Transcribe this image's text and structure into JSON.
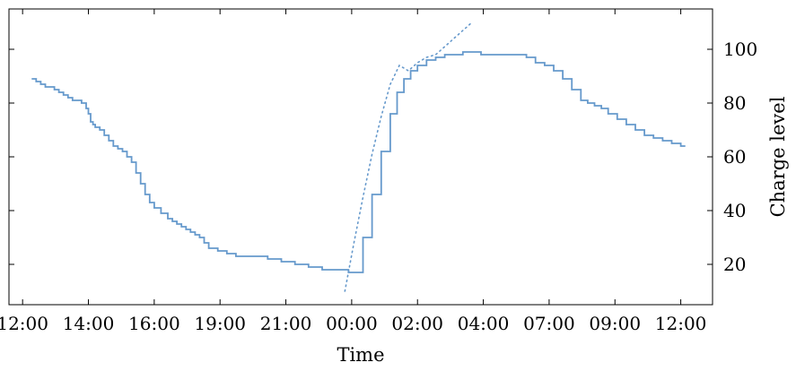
{
  "chart_data": {
    "type": "line",
    "title": "",
    "xlabel": "Time",
    "ylabel": "Charge level",
    "y_axis_side": "right",
    "grid": false,
    "legend": "none",
    "xlim": [
      0,
      15.5
    ],
    "ylim": [
      5,
      115
    ],
    "x_tick_values": [
      0.3,
      1.75,
      3.2,
      4.65,
      6.1,
      7.55,
      9.0,
      10.45,
      11.9,
      13.35,
      14.8
    ],
    "x_tick_labels": [
      "12:00",
      "14:00",
      "16:00",
      "19:00",
      "21:00",
      "00:00",
      "02:00",
      "04:00",
      "07:00",
      "09:00",
      "12:00"
    ],
    "y_ticks": [
      20,
      40,
      60,
      80,
      100
    ],
    "series": [
      {
        "style": "solid-step",
        "color": "#6699cc",
        "x": [
          0.5,
          0.6,
          0.7,
          0.8,
          0.9,
          1.0,
          1.1,
          1.2,
          1.3,
          1.4,
          1.5,
          1.6,
          1.7,
          1.75,
          1.8,
          1.85,
          1.9,
          2.0,
          2.1,
          2.2,
          2.3,
          2.4,
          2.5,
          2.6,
          2.7,
          2.8,
          2.9,
          3.0,
          3.1,
          3.2,
          3.35,
          3.5,
          3.6,
          3.7,
          3.8,
          3.9,
          4.0,
          4.1,
          4.2,
          4.3,
          4.4,
          4.5,
          4.6,
          4.7,
          4.8,
          5.0,
          5.2,
          5.4,
          5.7,
          6.0,
          6.3,
          6.6,
          6.9,
          7.2,
          7.48,
          7.6,
          7.8,
          8.0,
          8.2,
          8.4,
          8.55,
          8.7,
          8.85,
          9.0,
          9.2,
          9.4,
          9.6,
          9.8,
          10.0,
          10.2,
          10.4,
          10.6,
          10.8,
          11.0,
          11.2,
          11.4,
          11.6,
          11.8,
          12.0,
          12.2,
          12.4,
          12.6,
          12.75,
          12.9,
          13.05,
          13.2,
          13.4,
          13.6,
          13.8,
          14.0,
          14.2,
          14.4,
          14.6,
          14.8,
          14.9
        ],
        "y": [
          89,
          88,
          87,
          86,
          86,
          85,
          84,
          83,
          82,
          81,
          81,
          80,
          78,
          76,
          73,
          72,
          71,
          70,
          68,
          66,
          64,
          63,
          62,
          60,
          58,
          54,
          50,
          46,
          43,
          41,
          39,
          37,
          36,
          35,
          34,
          33,
          32,
          31,
          30,
          28,
          26,
          26,
          25,
          25,
          24,
          23,
          23,
          23,
          22,
          21,
          20,
          19,
          18,
          18,
          17,
          17,
          30,
          46,
          62,
          76,
          84,
          89,
          92,
          94,
          96,
          97,
          98,
          98,
          99,
          99,
          98,
          98,
          98,
          98,
          98,
          97,
          95,
          94,
          92,
          89,
          85,
          81,
          80,
          79,
          78,
          76,
          74,
          72,
          70,
          68,
          67,
          66,
          65,
          64,
          64
        ]
      },
      {
        "style": "dotted",
        "color": "#6699cc",
        "x": [
          7.4,
          7.6,
          7.8,
          8.0,
          8.2,
          8.4,
          8.6,
          8.8,
          9.0,
          9.2,
          9.4,
          9.6,
          9.8,
          10.0,
          10.2
        ],
        "y": [
          10,
          28,
          45,
          61,
          75,
          87,
          94,
          92,
          95,
          97,
          98,
          101,
          104,
          107,
          110
        ]
      }
    ]
  }
}
